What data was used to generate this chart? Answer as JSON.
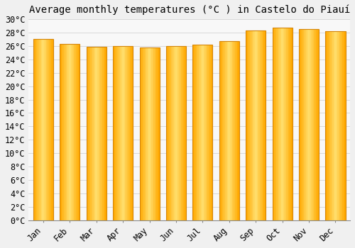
{
  "title": "Average monthly temperatures (°C ) in Castelo do Piauí",
  "months": [
    "Jan",
    "Feb",
    "Mar",
    "Apr",
    "May",
    "Jun",
    "Jul",
    "Aug",
    "Sep",
    "Oct",
    "Nov",
    "Dec"
  ],
  "values": [
    27.0,
    26.3,
    25.9,
    26.0,
    25.8,
    26.0,
    26.2,
    26.7,
    28.3,
    28.7,
    28.5,
    28.2
  ],
  "bar_edge_color": "#D4860A",
  "bar_center_color": "#FFE070",
  "bar_main_color": "#FFA800",
  "ylim": [
    0,
    30
  ],
  "ytick_step": 2,
  "background_color": "#f0f0f0",
  "plot_bg_color": "#f8f8f8",
  "grid_color": "#cccccc",
  "title_fontsize": 10,
  "tick_fontsize": 8.5,
  "font_family": "monospace",
  "bar_width": 0.75
}
